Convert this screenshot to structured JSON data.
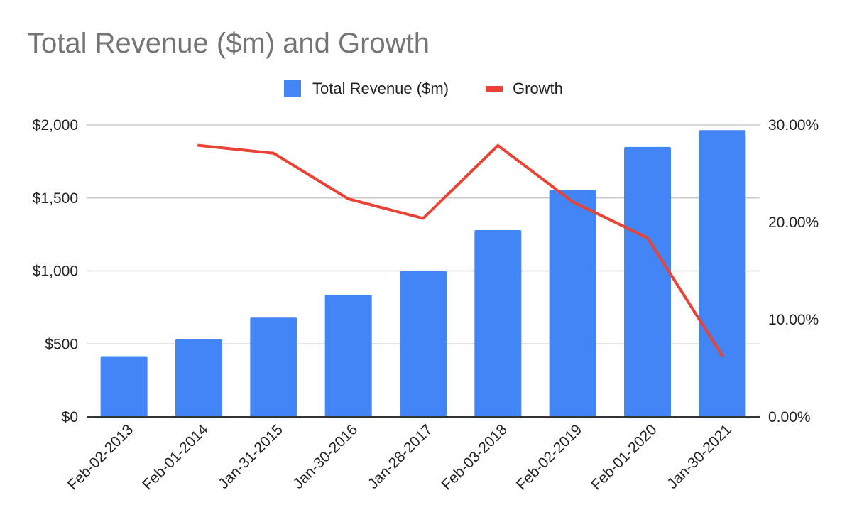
{
  "chart_data": {
    "type": "bar",
    "title": "Total Revenue ($m) and Growth",
    "legend_position": "top",
    "grid": true,
    "categories": [
      "Feb-02-2013",
      "Feb-01-2014",
      "Jan-31-2015",
      "Jan-30-2016",
      "Jan-28-2017",
      "Feb-03-2018",
      "Feb-02-2019",
      "Feb-01-2020",
      "Jan-30-2021"
    ],
    "series": [
      {
        "name": "Total Revenue ($m)",
        "type": "bar",
        "axis": "left",
        "color": "#4285f4",
        "values": [
          416,
          532,
          680,
          835,
          1000,
          1280,
          1555,
          1850,
          1965
        ]
      },
      {
        "name": "Growth",
        "type": "line",
        "axis": "right",
        "color": "#ea4335",
        "values": [
          null,
          27.9,
          27.1,
          22.4,
          20.4,
          27.9,
          22.1,
          18.4,
          6.3
        ]
      }
    ],
    "y_left": {
      "ylim": [
        0,
        2000
      ],
      "ticks": [
        0,
        500,
        1000,
        1500,
        2000
      ],
      "tick_labels": [
        "$0",
        "$500",
        "$1,000",
        "$1,500",
        "$2,000"
      ]
    },
    "y_right": {
      "ylim": [
        0,
        30
      ],
      "ticks": [
        0,
        10,
        20,
        30
      ],
      "tick_labels": [
        "0.00%",
        "10.00%",
        "20.00%",
        "30.00%"
      ]
    }
  }
}
